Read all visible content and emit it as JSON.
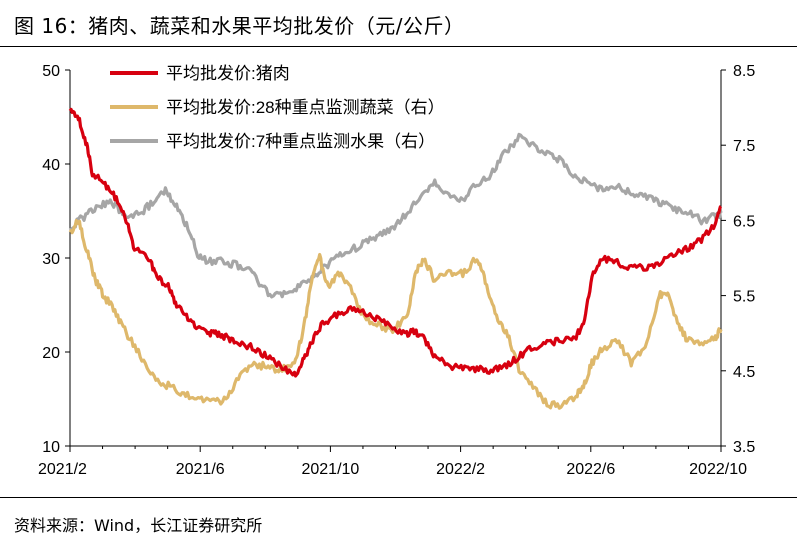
{
  "title": "图 16：猪肉、蔬菜和水果平均批发价（元/公斤）",
  "source": "资料来源：Wind，长江证券研究所",
  "chart_data": {
    "type": "line",
    "x_ticks": [
      "2021/2",
      "2021/6",
      "2021/10",
      "2022/2",
      "2022/6",
      "2022/10"
    ],
    "x_range": [
      "2021/2",
      "2022/10"
    ],
    "y_left": {
      "min": 10,
      "max": 50,
      "ticks": [
        "10",
        "20",
        "30",
        "40",
        "50"
      ]
    },
    "y_right": {
      "min": 3.5,
      "max": 8.5,
      "ticks": [
        "3.5",
        "4.5",
        "5.5",
        "6.5",
        "7.5",
        "8.5"
      ]
    },
    "series": [
      {
        "name": "平均批发价:猪肉",
        "axis": "left",
        "color": "#d7000f",
        "points": [
          [
            0,
            46
          ],
          [
            0.3,
            45
          ],
          [
            0.6,
            42
          ],
          [
            0.8,
            39
          ],
          [
            1.2,
            38
          ],
          [
            1.6,
            36.5
          ],
          [
            2.0,
            34
          ],
          [
            2.3,
            31
          ],
          [
            2.8,
            30
          ],
          [
            3.1,
            28
          ],
          [
            3.5,
            27
          ],
          [
            3.8,
            25
          ],
          [
            4.2,
            23.5
          ],
          [
            4.6,
            22.5
          ],
          [
            5.0,
            22
          ],
          [
            5.3,
            22
          ],
          [
            5.6,
            21.5
          ],
          [
            6.0,
            21
          ],
          [
            6.5,
            20.5
          ],
          [
            7.0,
            19.5
          ],
          [
            7.5,
            18.5
          ],
          [
            8.0,
            17.5
          ],
          [
            8.3,
            19
          ],
          [
            8.6,
            21
          ],
          [
            9.0,
            23
          ],
          [
            9.5,
            24
          ],
          [
            10.0,
            24.5
          ],
          [
            10.5,
            24.2
          ],
          [
            11.0,
            23.5
          ],
          [
            11.5,
            22.5
          ],
          [
            12.0,
            22
          ],
          [
            12.3,
            22.2
          ],
          [
            12.6,
            21.5
          ],
          [
            13.0,
            19.5
          ],
          [
            13.5,
            18.5
          ],
          [
            14.0,
            18.3
          ],
          [
            14.5,
            18.2
          ],
          [
            15.0,
            18
          ],
          [
            15.5,
            18.5
          ],
          [
            16.0,
            19.5
          ],
          [
            16.5,
            20.5
          ],
          [
            17.0,
            21
          ],
          [
            17.5,
            21.2
          ],
          [
            18.0,
            21.5
          ],
          [
            18.3,
            23
          ],
          [
            18.6,
            28
          ],
          [
            19.0,
            30
          ],
          [
            19.5,
            29.5
          ],
          [
            20.0,
            29
          ],
          [
            20.5,
            29
          ],
          [
            21.0,
            29.5
          ],
          [
            21.5,
            30.5
          ],
          [
            22.0,
            31
          ],
          [
            22.5,
            32
          ],
          [
            23.0,
            33.5
          ],
          [
            23.2,
            35.5
          ]
        ]
      },
      {
        "name": "平均批发价:28种重点监测蔬菜（右）",
        "axis": "right",
        "color": "#deb86b",
        "points": [
          [
            0,
            6.3
          ],
          [
            0.3,
            6.5
          ],
          [
            0.6,
            6.1
          ],
          [
            0.9,
            5.7
          ],
          [
            1.2,
            5.5
          ],
          [
            1.6,
            5.3
          ],
          [
            2.0,
            5.0
          ],
          [
            2.5,
            4.7
          ],
          [
            3.0,
            4.4
          ],
          [
            3.5,
            4.3
          ],
          [
            4.0,
            4.2
          ],
          [
            4.5,
            4.15
          ],
          [
            5.0,
            4.1
          ],
          [
            5.5,
            4.1
          ],
          [
            6.0,
            4.4
          ],
          [
            6.5,
            4.6
          ],
          [
            7.0,
            4.55
          ],
          [
            7.5,
            4.5
          ],
          [
            8.0,
            4.6
          ],
          [
            8.3,
            5.0
          ],
          [
            8.6,
            5.7
          ],
          [
            8.9,
            6.0
          ],
          [
            9.2,
            5.6
          ],
          [
            9.6,
            5.8
          ],
          [
            10.0,
            5.6
          ],
          [
            10.5,
            5.2
          ],
          [
            11.0,
            5.1
          ],
          [
            11.5,
            5.05
          ],
          [
            12.0,
            5.2
          ],
          [
            12.3,
            5.8
          ],
          [
            12.6,
            6.0
          ],
          [
            13.0,
            5.7
          ],
          [
            13.5,
            5.8
          ],
          [
            14.0,
            5.8
          ],
          [
            14.5,
            6.0
          ],
          [
            14.8,
            5.7
          ],
          [
            15.2,
            5.2
          ],
          [
            15.6,
            5.0
          ],
          [
            16.0,
            4.5
          ],
          [
            16.5,
            4.3
          ],
          [
            17.0,
            4.05
          ],
          [
            17.5,
            4.05
          ],
          [
            18.0,
            4.15
          ],
          [
            18.3,
            4.3
          ],
          [
            18.6,
            4.6
          ],
          [
            19.0,
            4.8
          ],
          [
            19.5,
            4.9
          ],
          [
            20.0,
            4.6
          ],
          [
            20.5,
            4.8
          ],
          [
            21.0,
            5.5
          ],
          [
            21.3,
            5.55
          ],
          [
            21.6,
            5.2
          ],
          [
            22.0,
            4.9
          ],
          [
            22.5,
            4.85
          ],
          [
            23.0,
            4.95
          ],
          [
            23.2,
            5.05
          ]
        ]
      },
      {
        "name": "平均批发价:7种重点监测水果（右）",
        "axis": "right",
        "color": "#a6a6a6",
        "points": [
          [
            0,
            6.4
          ],
          [
            0.5,
            6.55
          ],
          [
            1.0,
            6.7
          ],
          [
            1.5,
            6.75
          ],
          [
            2.0,
            6.55
          ],
          [
            2.5,
            6.6
          ],
          [
            3.0,
            6.75
          ],
          [
            3.4,
            6.9
          ],
          [
            3.8,
            6.7
          ],
          [
            4.2,
            6.4
          ],
          [
            4.6,
            6.0
          ],
          [
            5.0,
            5.95
          ],
          [
            5.5,
            5.95
          ],
          [
            6.0,
            5.9
          ],
          [
            6.5,
            5.8
          ],
          [
            7.0,
            5.55
          ],
          [
            7.5,
            5.5
          ],
          [
            8.0,
            5.6
          ],
          [
            8.5,
            5.7
          ],
          [
            9.0,
            5.85
          ],
          [
            9.5,
            6.0
          ],
          [
            10.0,
            6.1
          ],
          [
            10.5,
            6.2
          ],
          [
            11.0,
            6.3
          ],
          [
            11.5,
            6.4
          ],
          [
            12.0,
            6.6
          ],
          [
            12.5,
            6.8
          ],
          [
            13.0,
            7.0
          ],
          [
            13.5,
            6.85
          ],
          [
            14.0,
            6.75
          ],
          [
            14.5,
            7.0
          ],
          [
            15.0,
            7.1
          ],
          [
            15.5,
            7.4
          ],
          [
            16.0,
            7.6
          ],
          [
            16.5,
            7.5
          ],
          [
            17.0,
            7.4
          ],
          [
            17.5,
            7.3
          ],
          [
            18.0,
            7.1
          ],
          [
            18.5,
            7.0
          ],
          [
            19.0,
            6.9
          ],
          [
            19.5,
            6.95
          ],
          [
            20.0,
            6.85
          ],
          [
            20.5,
            6.8
          ],
          [
            21.0,
            6.75
          ],
          [
            21.5,
            6.65
          ],
          [
            22.0,
            6.6
          ],
          [
            22.5,
            6.5
          ],
          [
            23.0,
            6.55
          ],
          [
            23.2,
            6.6
          ]
        ]
      }
    ]
  }
}
